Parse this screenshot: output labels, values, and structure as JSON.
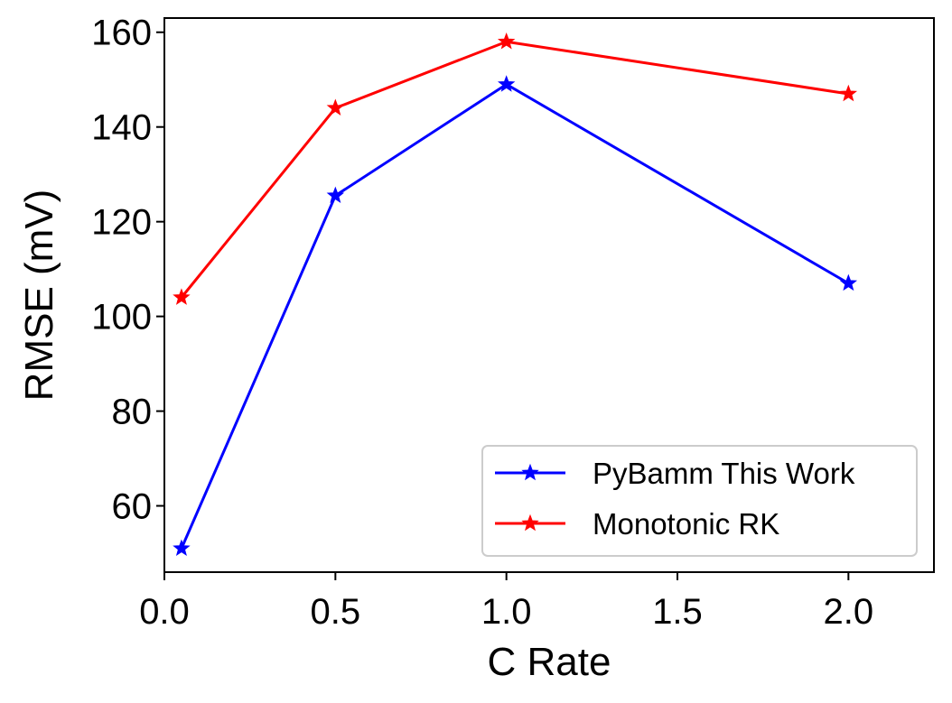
{
  "chart_data": {
    "type": "line",
    "xlabel": "C Rate",
    "ylabel": "RMSE (mV)",
    "xlim": [
      0.0,
      2.25
    ],
    "ylim": [
      46,
      163
    ],
    "xticks": [
      0.0,
      0.5,
      1.0,
      1.5,
      2.0
    ],
    "xtick_labels": [
      "0.0",
      "0.5",
      "1.0",
      "1.5",
      "2.0"
    ],
    "yticks": [
      60,
      80,
      100,
      120,
      140,
      160
    ],
    "ytick_labels": [
      "60",
      "80",
      "100",
      "120",
      "140",
      "160"
    ],
    "grid": false,
    "legend_position": "lower-right",
    "series": [
      {
        "name": "PyBamm This Work",
        "color": "#0000ff",
        "marker": "star",
        "x": [
          0.05,
          0.5,
          1.0,
          2.0
        ],
        "y": [
          51,
          125.5,
          149,
          107
        ]
      },
      {
        "name": "Monotonic RK",
        "color": "#ff0000",
        "marker": "star",
        "x": [
          0.05,
          0.5,
          1.0,
          2.0
        ],
        "y": [
          104,
          144,
          158,
          147
        ]
      }
    ]
  }
}
